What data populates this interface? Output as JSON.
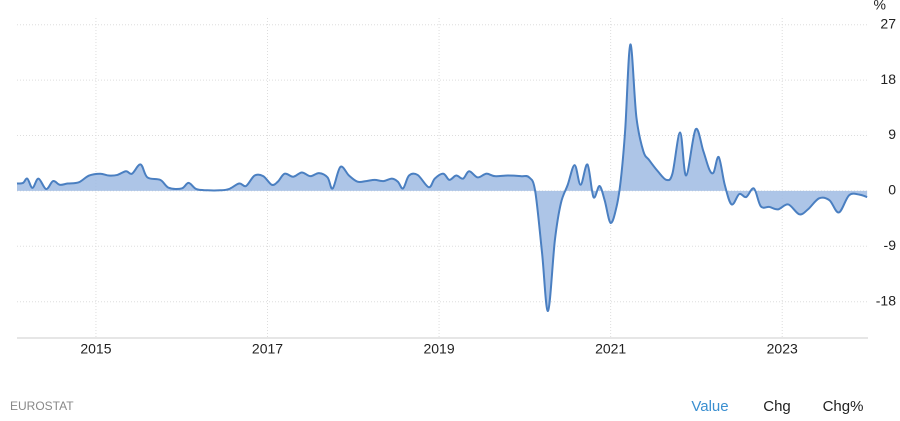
{
  "chart_data": {
    "type": "area",
    "unit": "%",
    "color": "#4a7fc1",
    "fill": "#9fbbe3",
    "grid": true,
    "xlim": [
      2014.08,
      2024.0
    ],
    "xticks": [
      2015,
      2017,
      2019,
      2021,
      2023
    ],
    "ylim": [
      -23.9,
      28.1
    ],
    "yticks": [
      27,
      18,
      9,
      0,
      -9,
      -18
    ],
    "x": [
      2014.08,
      2014.15,
      2014.2,
      2014.26,
      2014.33,
      2014.42,
      2014.5,
      2014.58,
      2014.67,
      2014.8,
      2014.92,
      2015.05,
      2015.15,
      2015.25,
      2015.35,
      2015.42,
      2015.52,
      2015.6,
      2015.75,
      2015.85,
      2016.0,
      2016.08,
      2016.17,
      2016.3,
      2016.45,
      2016.55,
      2016.67,
      2016.75,
      2016.85,
      2016.95,
      2017.05,
      2017.12,
      2017.2,
      2017.3,
      2017.4,
      2017.5,
      2017.6,
      2017.7,
      2017.76,
      2017.85,
      2017.95,
      2018.05,
      2018.15,
      2018.25,
      2018.35,
      2018.45,
      2018.52,
      2018.58,
      2018.65,
      2018.75,
      2018.88,
      2018.95,
      2019.05,
      2019.12,
      2019.2,
      2019.28,
      2019.35,
      2019.45,
      2019.55,
      2019.65,
      2019.8,
      2019.95,
      2020.05,
      2020.12,
      2020.2,
      2020.27,
      2020.35,
      2020.42,
      2020.5,
      2020.58,
      2020.65,
      2020.73,
      2020.8,
      2020.87,
      2020.93,
      2021.0,
      2021.07,
      2021.12,
      2021.17,
      2021.23,
      2021.3,
      2021.38,
      2021.45,
      2021.55,
      2021.65,
      2021.72,
      2021.81,
      2021.88,
      2021.99,
      2022.08,
      2022.15,
      2022.2,
      2022.26,
      2022.33,
      2022.41,
      2022.5,
      2022.58,
      2022.67,
      2022.75,
      2022.85,
      2022.95,
      2023.07,
      2023.2,
      2023.3,
      2023.43,
      2023.55,
      2023.66,
      2023.78,
      2023.9,
      2023.99
    ],
    "values": [
      1.2,
      1.3,
      2.0,
      0.5,
      2.0,
      0.3,
      1.6,
      1.0,
      1.2,
      1.4,
      2.5,
      2.8,
      2.5,
      2.6,
      3.2,
      2.8,
      4.3,
      2.2,
      1.8,
      0.5,
      0.4,
      1.3,
      0.3,
      0.1,
      0.1,
      0.3,
      1.2,
      0.8,
      2.5,
      2.4,
      1.0,
      1.5,
      2.8,
      2.3,
      3.0,
      2.4,
      2.9,
      2.2,
      0.4,
      3.9,
      2.5,
      1.5,
      1.6,
      1.8,
      1.6,
      2.0,
      1.5,
      0.4,
      2.5,
      2.6,
      0.6,
      2.0,
      2.8,
      1.8,
      2.5,
      2.0,
      3.2,
      2.2,
      2.8,
      2.4,
      2.5,
      2.4,
      2.2,
      0.0,
      -10,
      -19.5,
      -8,
      -2,
      1.0,
      4.2,
      1.0,
      4.3,
      -1.0,
      0.8,
      -1.5,
      -5.2,
      -2.5,
      2.0,
      10,
      23.8,
      12,
      6.5,
      5.0,
      3.2,
      1.8,
      2.8,
      9.5,
      2.5,
      10,
      6.5,
      3.5,
      3.0,
      5.5,
      1.0,
      -2.2,
      -0.5,
      -1.0,
      0.4,
      -2.5,
      -2.6,
      -3.0,
      -2.2,
      -3.8,
      -3.0,
      -1.2,
      -1.5,
      -3.5,
      -0.7,
      -0.6,
      -1.0
    ]
  },
  "footer": {
    "source": "EUROSTAT",
    "tabs": [
      "Value",
      "Chg",
      "Chg%"
    ],
    "active": 0
  }
}
